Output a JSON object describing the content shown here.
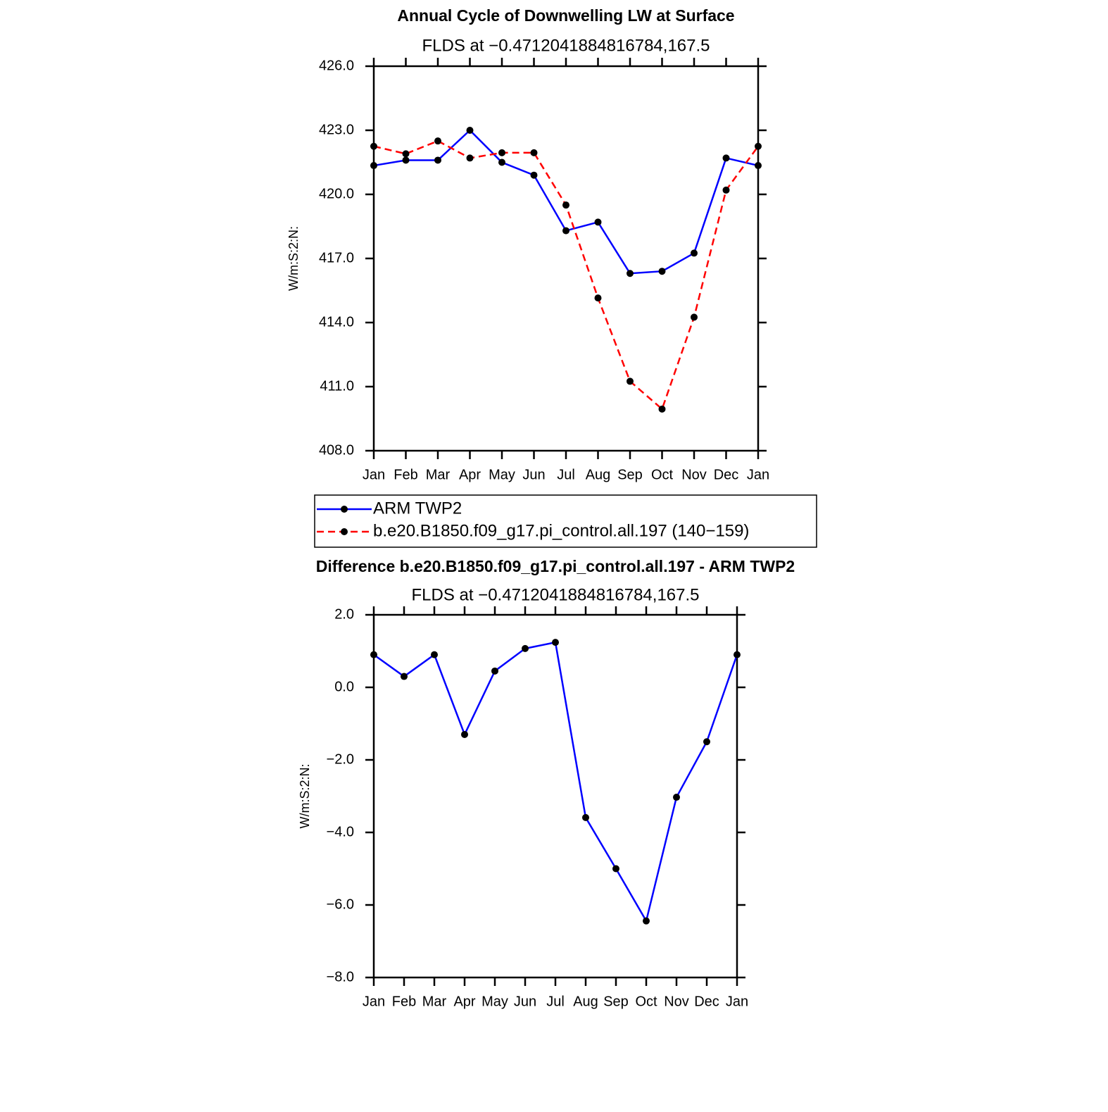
{
  "chart_data": [
    {
      "type": "line",
      "title": "Annual Cycle of Downwelling LW at Surface",
      "subtitle": "FLDS at −0.4712041884816784,167.5",
      "y_label": "W/m:S:2:N:",
      "categories": [
        "Jan",
        "Feb",
        "Mar",
        "Apr",
        "May",
        "Jun",
        "Jul",
        "Aug",
        "Sep",
        "Oct",
        "Nov",
        "Dec",
        "Jan"
      ],
      "series": [
        {
          "name": "ARM TWP2",
          "color": "#0000ff",
          "dash": false,
          "values": [
            421.35,
            421.6,
            421.6,
            423.0,
            421.5,
            420.9,
            418.3,
            418.7,
            416.3,
            416.4,
            417.25,
            421.7,
            421.35
          ]
        },
        {
          "name": "b.e20.B1850.f09_g17.pi_control.all.197 (140−159)",
          "color": "#ff0000",
          "dash": true,
          "values": [
            422.25,
            421.9,
            422.5,
            421.7,
            421.95,
            421.95,
            419.5,
            415.15,
            411.25,
            409.95,
            414.25,
            420.2,
            422.25
          ]
        }
      ],
      "ylim": [
        408,
        426
      ],
      "yticks": [
        {
          "value": 408,
          "label": "408.0"
        },
        {
          "value": 411,
          "label": "411.0"
        },
        {
          "value": 414,
          "label": "414.0"
        },
        {
          "value": 417,
          "label": "417.0"
        },
        {
          "value": 420,
          "label": "420.0"
        },
        {
          "value": 423,
          "label": "423.0"
        },
        {
          "value": 426,
          "label": "426.0"
        }
      ],
      "legend": "bottom"
    },
    {
      "type": "line",
      "title": "Difference b.e20.B1850.f09_g17.pi_control.all.197 - ARM TWP2",
      "subtitle": "FLDS at −0.4712041884816784,167.5",
      "y_label": "W/m:S:2:N:",
      "categories": [
        "Jan",
        "Feb",
        "Mar",
        "Apr",
        "May",
        "Jun",
        "Jul",
        "Aug",
        "Sep",
        "Oct",
        "Nov",
        "Dec",
        "Jan"
      ],
      "series": [
        {
          "color": "#0000ff",
          "dash": false,
          "values": [
            0.9,
            0.3,
            0.9,
            -1.3,
            0.45,
            1.07,
            1.24,
            -3.59,
            -5.0,
            -6.44,
            -3.03,
            -1.5,
            0.9
          ]
        }
      ],
      "ylim": [
        -8,
        2
      ],
      "yticks": [
        {
          "value": -8,
          "label": "−8.0"
        },
        {
          "value": -6,
          "label": "−6.0"
        },
        {
          "value": -4,
          "label": "−4.0"
        },
        {
          "value": -2,
          "label": "−2.0"
        },
        {
          "value": 0,
          "label": "0.0"
        },
        {
          "value": 2,
          "label": "2.0"
        }
      ]
    }
  ]
}
